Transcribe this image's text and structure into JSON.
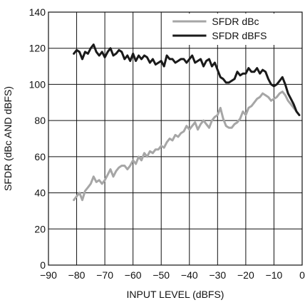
{
  "chart_data": {
    "type": "line",
    "title": "",
    "xlabel": "INPUT LEVEL (dBFS)",
    "ylabel": "SFDR (dBc AND dBFS)",
    "xlim": [
      -90,
      0
    ],
    "ylim": [
      0,
      140
    ],
    "x_ticks": [
      -90,
      -80,
      -70,
      -60,
      -50,
      -40,
      -30,
      -20,
      -10,
      0
    ],
    "x_tick_labels": [
      "−90",
      "−80",
      "−70",
      "−60",
      "−50",
      "−40",
      "−30",
      "−20",
      "−10",
      "0"
    ],
    "y_ticks": [
      0,
      20,
      40,
      60,
      80,
      100,
      120,
      140
    ],
    "y_tick_labels": [
      "0",
      "20",
      "40",
      "60",
      "80",
      "100",
      "120",
      "140"
    ],
    "grid": true,
    "legend_position": "top-right",
    "series": [
      {
        "name": "SFDR dBc",
        "color": "#a6a6a6",
        "x": [
          -81,
          -80,
          -79,
          -78,
          -77,
          -76,
          -75,
          -74,
          -73,
          -72,
          -71,
          -70,
          -69,
          -68,
          -67,
          -66,
          -65,
          -64,
          -63,
          -62,
          -61,
          -60,
          -59,
          -58,
          -57,
          -56,
          -55,
          -54,
          -53,
          -52,
          -51,
          -50,
          -49,
          -48,
          -47,
          -46,
          -45,
          -44,
          -43,
          -42,
          -41,
          -40,
          -39,
          -38,
          -37,
          -36,
          -35,
          -34,
          -33,
          -32,
          -31,
          -30,
          -29,
          -28,
          -27,
          -26,
          -25,
          -24,
          -23,
          -22,
          -21,
          -20,
          -19,
          -18,
          -17,
          -16,
          -15,
          -14,
          -13,
          -12,
          -11,
          -10,
          -9,
          -8,
          -7,
          -6,
          -5,
          -4,
          -3,
          -2,
          -1
        ],
        "y": [
          36,
          38,
          40,
          36,
          41,
          43,
          45,
          49,
          46,
          47,
          45,
          47,
          50,
          53,
          49,
          52,
          54,
          55,
          55,
          53,
          55,
          58,
          56,
          60,
          58,
          62,
          60,
          63,
          62,
          64,
          64,
          66,
          65,
          68,
          70,
          69,
          72,
          71,
          73,
          74,
          77,
          75,
          77,
          79,
          75,
          78,
          80,
          78,
          76,
          80,
          82,
          83,
          87,
          81,
          77,
          76,
          76,
          78,
          79,
          81,
          85,
          83,
          87,
          88,
          90,
          92,
          93,
          95,
          94,
          93,
          91,
          92,
          93,
          95,
          96,
          94,
          91,
          89,
          87,
          85,
          83
        ]
      },
      {
        "name": "SFDR dBFS",
        "color": "#1a1a1a",
        "x": [
          -81,
          -80,
          -79,
          -78,
          -77,
          -76,
          -75,
          -74,
          -73,
          -72,
          -71,
          -70,
          -69,
          -68,
          -67,
          -66,
          -65,
          -64,
          -63,
          -62,
          -61,
          -60,
          -59,
          -58,
          -57,
          -56,
          -55,
          -54,
          -53,
          -52,
          -51,
          -50,
          -49,
          -48,
          -47,
          -46,
          -45,
          -44,
          -43,
          -42,
          -41,
          -40,
          -39,
          -38,
          -37,
          -36,
          -35,
          -34,
          -33,
          -32,
          -31,
          -30,
          -29,
          -28,
          -27,
          -26,
          -25,
          -24,
          -23,
          -22,
          -21,
          -20,
          -19,
          -18,
          -17,
          -16,
          -15,
          -14,
          -13,
          -12,
          -11,
          -10,
          -9,
          -8,
          -7,
          -6,
          -5,
          -4,
          -3,
          -2,
          -1
        ],
        "y": [
          117,
          119,
          118,
          114,
          118,
          117,
          120,
          122,
          118,
          116,
          118,
          115,
          118,
          120,
          116,
          117,
          119,
          118,
          114,
          116,
          113,
          117,
          113,
          116,
          114,
          116,
          115,
          112,
          114,
          111,
          112,
          113,
          110,
          116,
          114,
          114,
          112,
          113,
          114,
          114,
          112,
          114,
          116,
          112,
          113,
          114,
          110,
          113,
          114,
          110,
          112,
          108,
          104,
          103,
          101,
          101,
          102,
          103,
          107,
          105,
          106,
          106,
          109,
          107,
          107,
          109,
          106,
          108,
          107,
          103,
          100,
          99,
          100,
          102,
          104,
          100,
          95,
          92,
          89,
          85,
          83
        ]
      }
    ]
  }
}
